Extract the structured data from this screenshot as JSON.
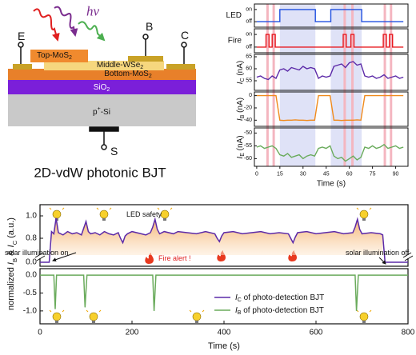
{
  "diagram": {
    "photon": "hν",
    "terminals": [
      "E",
      "B",
      "C",
      "S"
    ],
    "layers": {
      "top": [
        "Top-MoS",
        "2"
      ],
      "middle": [
        "Middle-WSe",
        "2"
      ],
      "bottom": [
        "Bottom-MoS",
        "2"
      ],
      "oxide": [
        "SiO",
        "2"
      ],
      "substrate": [
        "p",
        "+",
        "-Si"
      ]
    },
    "caption": "2D-vdW photonic BJT"
  },
  "chart_data": [
    {
      "type": "line",
      "xlim": [
        -1.5,
        98
      ],
      "xticks": [
        0,
        15,
        30,
        45,
        60,
        75,
        90
      ],
      "xlabel": "Time (s)",
      "shaded_intervals": [
        [
          15,
          38
        ],
        [
          48,
          68
        ]
      ],
      "fire_marks": [
        7,
        11,
        57,
        62,
        83,
        87
      ],
      "panels": [
        {
          "ylabel": [
            "LED"
          ],
          "ylim": [
            -0.45,
            1.45
          ],
          "yticks": [
            {
              "value": 0,
              "label": "off"
            },
            {
              "value": 1,
              "label": "on"
            }
          ],
          "color": "#1f4fe0",
          "x": [
            0,
            15,
            15,
            38,
            38,
            48,
            48,
            68,
            68,
            95
          ],
          "values": [
            0,
            0,
            1,
            1,
            0,
            0,
            1,
            1,
            0,
            0
          ]
        },
        {
          "ylabel": [
            "Fire"
          ],
          "ylim": [
            -0.45,
            1.45
          ],
          "yticks": [
            {
              "value": 0,
              "label": "off"
            },
            {
              "value": 1,
              "label": "on"
            }
          ],
          "color": "#e8191f",
          "x": [
            0,
            6,
            6,
            8,
            8,
            10,
            10,
            12,
            12,
            56,
            56,
            58,
            58,
            61,
            61,
            63,
            63,
            82,
            82,
            84,
            84,
            86,
            86,
            88,
            88,
            95
          ],
          "values": [
            0,
            0,
            1,
            1,
            0,
            0,
            1,
            1,
            0,
            0,
            1,
            1,
            0,
            0,
            1,
            1,
            0,
            0,
            1,
            1,
            0,
            0,
            1,
            1,
            0,
            0
          ]
        },
        {
          "ylabel": [
            "I",
            "C",
            " (nA)"
          ],
          "ylim": [
            51,
            66
          ],
          "yticks": [
            55,
            60,
            65
          ],
          "color": "#5c2aa8",
          "x": [
            0,
            2.5,
            5,
            7.5,
            10,
            12.5,
            15,
            17.5,
            20,
            22.5,
            25,
            27.5,
            30,
            32.5,
            35,
            37.5,
            40,
            42.5,
            45,
            47.5,
            50,
            52.5,
            55,
            57.5,
            60,
            62.5,
            65,
            67.5,
            70,
            72.5,
            75,
            77.5,
            80,
            82.5,
            85,
            87.5,
            90,
            92.5,
            95
          ],
          "values": [
            56.5,
            57,
            56,
            55.5,
            57,
            56,
            59.5,
            60,
            59,
            60.5,
            60,
            59.5,
            61,
            60,
            60.5,
            60,
            56,
            57,
            56.5,
            57,
            61,
            61.5,
            62,
            60.5,
            62.5,
            63,
            61.5,
            62,
            57,
            56.5,
            57,
            56,
            56.5,
            57.5,
            56,
            56.5,
            57,
            56,
            56.5
          ]
        },
        {
          "ylabel": [
            "I",
            "B",
            " (nA)"
          ],
          "ylim": [
            -50,
            6
          ],
          "yticks": [
            0,
            -20,
            -40
          ],
          "color": "#f08a1c",
          "x": [
            0,
            2.5,
            5,
            7.5,
            10,
            12.5,
            15,
            17.5,
            20,
            22.5,
            25,
            27.5,
            30,
            32.5,
            35,
            37.5,
            40,
            42.5,
            45,
            47.5,
            50,
            52.5,
            55,
            57.5,
            60,
            62.5,
            65,
            67.5,
            70,
            72.5,
            75,
            77.5,
            80,
            82.5,
            85,
            87.5,
            90,
            92.5,
            95
          ],
          "values": [
            0,
            0,
            0,
            0,
            0,
            0,
            -40,
            -40.5,
            -40,
            -40,
            -39.5,
            -40,
            -40,
            -40.5,
            -40,
            -40,
            0,
            0,
            0,
            0,
            -40,
            -40,
            -40.5,
            -40,
            -40,
            -40,
            -39.5,
            -40,
            0,
            0,
            0,
            0,
            0,
            0,
            0,
            0,
            0,
            0,
            0
          ]
        },
        {
          "ylabel": [
            "I",
            "E",
            " (nA)"
          ],
          "ylim": [
            -63,
            -48
          ],
          "yticks": [
            -50,
            -55,
            -60
          ],
          "color": "#6aab5c",
          "x": [
            0,
            2.5,
            5,
            7.5,
            10,
            12.5,
            15,
            17.5,
            20,
            22.5,
            25,
            27.5,
            30,
            32.5,
            35,
            37.5,
            40,
            42.5,
            45,
            47.5,
            50,
            52.5,
            55,
            57.5,
            60,
            62.5,
            65,
            67.5,
            70,
            72.5,
            75,
            77.5,
            80,
            82.5,
            85,
            87.5,
            90,
            92.5,
            95
          ],
          "values": [
            -55.5,
            -55,
            -56,
            -55.5,
            -55,
            -56,
            -58.5,
            -59,
            -58,
            -59.5,
            -59,
            -58.5,
            -60,
            -59,
            -58.5,
            -59,
            -56,
            -55.5,
            -56,
            -55,
            -59,
            -60,
            -59.5,
            -61,
            -60,
            -59,
            -60.5,
            -59.5,
            -55.5,
            -56,
            -55,
            -56,
            -55.5,
            -54.5,
            -56,
            -55.5,
            -55,
            -56,
            -55.5
          ]
        }
      ]
    },
    {
      "type": "line",
      "xlim": [
        0,
        800
      ],
      "xticks": [
        0,
        200,
        400,
        600,
        800
      ],
      "xlabel": "Time (s)",
      "ylabel": [
        "normalized ",
        "I",
        "B",
        " & ",
        "I",
        "C",
        " (a.u.)"
      ],
      "annotations": [
        "LED safety",
        "solar illumination on",
        "Fire alert !",
        "solar illumination off"
      ],
      "panels": [
        {
          "segments": [
            {
              "ylim": [
                0.65,
                1.1
              ],
              "yticks": [
                0.8,
                {
                  "value": 1,
                  "label": "1.0"
                }
              ]
            },
            {
              "ylim": [
                -0.05,
                0.05
              ],
              "yticks": [
                {
                  "value": 0,
                  "label": "0.0"
                }
              ]
            }
          ],
          "name": [
            "I",
            "C",
            " of photo-detection BJT"
          ],
          "color": "#5c2aa8",
          "x": [
            0,
            20,
            25,
            30,
            35,
            40,
            50,
            60,
            70,
            80,
            90,
            100,
            105,
            110,
            120,
            130,
            140,
            150,
            160,
            170,
            175,
            180,
            185,
            190,
            200,
            210,
            220,
            230,
            240,
            245,
            250,
            255,
            260,
            270,
            280,
            290,
            300,
            320,
            340,
            360,
            380,
            385,
            390,
            395,
            400,
            420,
            440,
            460,
            480,
            500,
            520,
            540,
            545,
            550,
            555,
            560,
            580,
            600,
            620,
            640,
            660,
            680,
            685,
            690,
            695,
            700,
            720,
            740,
            745,
            750,
            760,
            800
          ],
          "values": [
            0,
            0,
            0.86,
            0.84,
            0.98,
            0.85,
            0.83,
            0.86,
            0.84,
            0.85,
            0.83,
            0.95,
            0.86,
            0.84,
            0.85,
            0.83,
            0.86,
            0.84,
            0.83,
            0.85,
            0.8,
            0.76,
            0.82,
            0.84,
            0.86,
            0.85,
            0.84,
            0.83,
            0.85,
            0.9,
            0.97,
            0.88,
            0.84,
            0.86,
            0.85,
            0.84,
            0.86,
            0.85,
            0.84,
            0.86,
            0.84,
            0.8,
            0.77,
            0.82,
            0.85,
            0.86,
            0.84,
            0.85,
            0.86,
            0.84,
            0.85,
            0.84,
            0.8,
            0.76,
            0.81,
            0.85,
            0.86,
            0.84,
            0.85,
            0.86,
            0.84,
            0.85,
            0.9,
            0.97,
            0.88,
            0.84,
            0.85,
            0.84,
            0.83,
            0,
            0,
            0
          ]
        },
        {
          "segments": [
            {
              "ylim": [
                -1.36,
                0.18
              ],
              "yticks": [
                {
                  "value": 0,
                  "label": "0.0"
                },
                -0.5,
                {
                  "value": -1,
                  "label": "-1.0"
                }
              ]
            }
          ],
          "name": [
            "I",
            "B",
            " of photo-detection BJT"
          ],
          "color": "#6aab5c",
          "x": [
            0,
            20,
            30,
            33,
            36,
            40,
            90,
            95,
            98,
            102,
            240,
            245,
            248,
            252,
            680,
            685,
            688,
            692,
            800
          ],
          "values": [
            0,
            0,
            0,
            -0.95,
            0,
            0,
            0,
            0,
            -0.9,
            0,
            0,
            0,
            -1,
            0,
            0,
            0,
            -1,
            0,
            0
          ]
        }
      ]
    }
  ]
}
